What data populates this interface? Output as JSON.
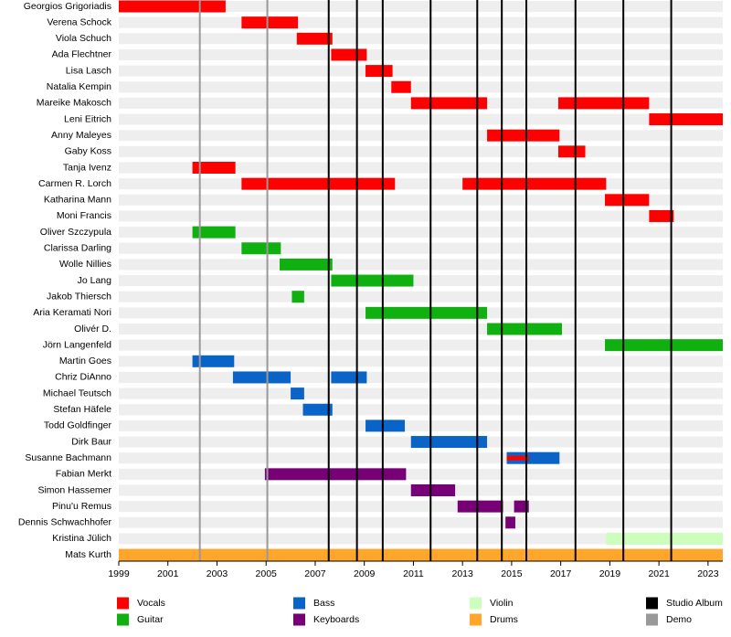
{
  "chart_data": {
    "type": "timeline",
    "xlim": [
      1999,
      2023.6
    ],
    "xticks": [
      1999,
      2001,
      2003,
      2005,
      2007,
      2009,
      2011,
      2013,
      2015,
      2017,
      2019,
      2021,
      2023
    ],
    "series": [
      {
        "name": "Vocals",
        "color": "#ff0000"
      },
      {
        "name": "Guitar",
        "color": "#11b011"
      },
      {
        "name": "Bass",
        "color": "#0a64c8"
      },
      {
        "name": "Keyboards",
        "color": "#770077"
      },
      {
        "name": "Violin",
        "color": "#ccffbb"
      },
      {
        "name": "Drums",
        "color": "#ffa62b"
      }
    ],
    "events": [
      {
        "name": "Studio Album",
        "color": "#000000",
        "x": [
          2007.55,
          2008.7,
          2009.75,
          2011.7,
          2013.6,
          2014.6,
          2015.6,
          2017.6,
          2019.55,
          2021.5
        ]
      },
      {
        "name": "Demo",
        "color": "#999999",
        "x": [
          2002.3,
          2005.05
        ]
      }
    ],
    "members": [
      {
        "name": "Georgios Grigoriadis",
        "periods": [
          {
            "role": "Vocals",
            "start": 1999,
            "end": 2003.35
          }
        ]
      },
      {
        "name": "Verena Schock",
        "periods": [
          {
            "role": "Vocals",
            "start": 2004.0,
            "end": 2006.3
          }
        ]
      },
      {
        "name": "Viola Schuch",
        "periods": [
          {
            "role": "Vocals",
            "start": 2006.25,
            "end": 2007.7
          }
        ]
      },
      {
        "name": "Ada Flechtner",
        "periods": [
          {
            "role": "Vocals",
            "start": 2007.65,
            "end": 2009.1
          }
        ]
      },
      {
        "name": "Lisa Lasch",
        "periods": [
          {
            "role": "Vocals",
            "start": 2009.05,
            "end": 2010.15
          }
        ]
      },
      {
        "name": "Natalia Kempin",
        "periods": [
          {
            "role": "Vocals",
            "start": 2010.1,
            "end": 2010.9
          }
        ]
      },
      {
        "name": "Mareike Makosch",
        "periods": [
          {
            "role": "Vocals",
            "start": 2010.9,
            "end": 2014.0
          },
          {
            "role": "Vocals",
            "start": 2016.9,
            "end": 2020.6
          }
        ]
      },
      {
        "name": "Leni Eitrich",
        "periods": [
          {
            "role": "Vocals",
            "start": 2020.6,
            "end": 2023.6
          }
        ]
      },
      {
        "name": "Anny Maleyes",
        "periods": [
          {
            "role": "Vocals",
            "start": 2014.0,
            "end": 2016.95
          }
        ]
      },
      {
        "name": "Gaby Koss",
        "periods": [
          {
            "role": "Vocals",
            "start": 2016.9,
            "end": 2018.0
          }
        ]
      },
      {
        "name": "Tanja Ivenz",
        "periods": [
          {
            "role": "Vocals",
            "start": 2002.0,
            "end": 2003.75
          }
        ]
      },
      {
        "name": "Carmen R. Lorch",
        "periods": [
          {
            "role": "Vocals",
            "start": 2004.0,
            "end": 2010.25
          },
          {
            "role": "Vocals",
            "start": 2013.0,
            "end": 2018.85
          }
        ]
      },
      {
        "name": "Katharina Mann",
        "periods": [
          {
            "role": "Vocals",
            "start": 2018.8,
            "end": 2020.6
          }
        ]
      },
      {
        "name": "Moni Francis",
        "periods": [
          {
            "role": "Vocals",
            "start": 2020.6,
            "end": 2021.6
          }
        ]
      },
      {
        "name": "Oliver Szczypula",
        "periods": [
          {
            "role": "Guitar",
            "start": 2002.0,
            "end": 2003.75
          }
        ]
      },
      {
        "name": "Clarissa Darling",
        "periods": [
          {
            "role": "Guitar",
            "start": 2004.0,
            "end": 2005.6
          }
        ]
      },
      {
        "name": "Wolle Nillies",
        "periods": [
          {
            "role": "Guitar",
            "start": 2005.55,
            "end": 2007.7
          }
        ]
      },
      {
        "name": "Jo Lang",
        "periods": [
          {
            "role": "Guitar",
            "start": 2007.65,
            "end": 2011.0
          }
        ]
      },
      {
        "name": "Jakob Thiersch",
        "periods": [
          {
            "role": "Guitar",
            "start": 2006.05,
            "end": 2006.55
          }
        ]
      },
      {
        "name": "Aria Keramati Nori",
        "periods": [
          {
            "role": "Guitar",
            "start": 2009.05,
            "end": 2014.0
          }
        ]
      },
      {
        "name": "Olivér D.",
        "periods": [
          {
            "role": "Guitar",
            "start": 2014.0,
            "end": 2017.05
          }
        ]
      },
      {
        "name": "Jörn Langenfeld",
        "periods": [
          {
            "role": "Guitar",
            "start": 2018.8,
            "end": 2023.6
          }
        ]
      },
      {
        "name": "Martin Goes",
        "periods": [
          {
            "role": "Bass",
            "start": 2002.0,
            "end": 2003.7
          }
        ]
      },
      {
        "name": "Chriz DiAnno",
        "periods": [
          {
            "role": "Bass",
            "start": 2003.65,
            "end": 2006.0
          },
          {
            "role": "Bass",
            "start": 2007.65,
            "end": 2009.1
          }
        ]
      },
      {
        "name": "Michael Teutsch",
        "periods": [
          {
            "role": "Bass",
            "start": 2006.0,
            "end": 2006.55
          }
        ]
      },
      {
        "name": "Stefan Häfele",
        "periods": [
          {
            "role": "Bass",
            "start": 2006.5,
            "end": 2007.7
          }
        ]
      },
      {
        "name": "Todd Goldfinger",
        "periods": [
          {
            "role": "Bass",
            "start": 2009.05,
            "end": 2010.65
          }
        ]
      },
      {
        "name": "Dirk Baur",
        "periods": [
          {
            "role": "Bass",
            "start": 2010.9,
            "end": 2014.0
          }
        ]
      },
      {
        "name": "Susanne Bachmann",
        "periods": [
          {
            "role": "Bass",
            "start": 2014.8,
            "end": 2016.95
          },
          {
            "role": "Vocals",
            "start": 2014.8,
            "end": 2015.7
          }
        ]
      },
      {
        "name": "Fabian Merkt",
        "periods": [
          {
            "role": "Keyboards",
            "start": 2004.95,
            "end": 2010.7
          }
        ]
      },
      {
        "name": "Simon Hassemer",
        "periods": [
          {
            "role": "Keyboards",
            "start": 2010.9,
            "end": 2012.7
          }
        ]
      },
      {
        "name": "Pinu'u Remus",
        "periods": [
          {
            "role": "Keyboards",
            "start": 2012.8,
            "end": 2014.65
          },
          {
            "role": "Keyboards",
            "start": 2015.1,
            "end": 2015.7
          }
        ]
      },
      {
        "name": "Dennis Schwachhofer",
        "periods": [
          {
            "role": "Keyboards",
            "start": 2014.75,
            "end": 2015.15
          }
        ]
      },
      {
        "name": "Kristina Jülich",
        "periods": [
          {
            "role": "Violin",
            "start": 2018.85,
            "end": 2023.6
          }
        ]
      },
      {
        "name": "Mats Kurth",
        "periods": [
          {
            "role": "Drums",
            "start": 1999,
            "end": 2023.6
          }
        ]
      }
    ]
  }
}
